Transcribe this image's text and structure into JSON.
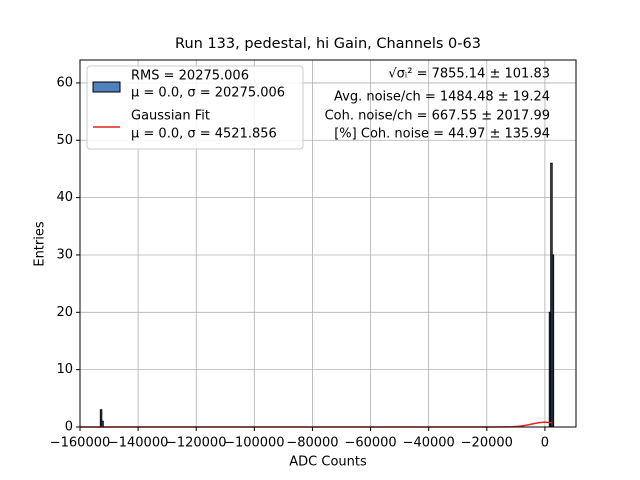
{
  "chart_data": {
    "type": "histogram",
    "title": "Run 133, pedestal, hi Gain, Channels 0-63",
    "xlabel": "ADC Counts",
    "ylabel": "Entries",
    "bins": [
      -153000,
      -152500,
      -152000,
      1500,
      2000,
      2500,
      3000
    ],
    "counts": [
      3,
      1,
      0,
      20,
      46,
      30
    ],
    "color": "#4f81bd",
    "edgecolor": "#000000",
    "legend_lines": [
      "RMS = 20275.006",
      "μ = 0.0, σ = 20275.006"
    ],
    "fit": {
      "type": "line",
      "legend_lines": [
        "Gaussian Fit",
        "μ = 0.0, σ = 4521.856"
      ],
      "color": "#e8221c",
      "x": [
        -160000,
        -20000,
        -12000,
        -9000,
        -6000,
        -4000,
        -2000,
        0,
        2500
      ],
      "values": [
        0,
        0,
        0.025,
        0.12,
        0.35,
        0.57,
        0.77,
        0.85,
        0.73
      ]
    },
    "annotations": [
      "√σᵢ² = 7855.14 ± 101.83",
      "Avg. noise/ch = 1484.48 ± 19.24",
      "Coh. noise/ch = 667.55 ± 2017.99",
      "[%] Coh. noise = 44.97 ± 135.94"
    ],
    "xlim": [
      -160000,
      10700
    ],
    "ylim": [
      0,
      64
    ],
    "xticks": [
      {
        "value": -160000,
        "label": "−160000"
      },
      {
        "value": -140000,
        "label": "−140000"
      },
      {
        "value": -120000,
        "label": "−120000"
      },
      {
        "value": -100000,
        "label": "−100000"
      },
      {
        "value": -80000,
        "label": "−80000"
      },
      {
        "value": -60000,
        "label": "−60000"
      },
      {
        "value": -40000,
        "label": "−40000"
      },
      {
        "value": -20000,
        "label": "−20000"
      },
      0
    ],
    "yticks": [
      0,
      10,
      20,
      30,
      40,
      50,
      60
    ],
    "grid": true,
    "legend_position": "upper left"
  }
}
